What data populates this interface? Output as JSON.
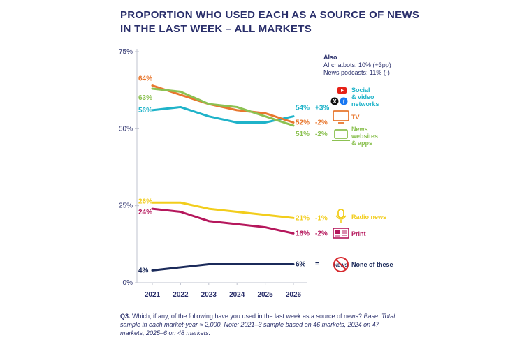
{
  "title": "PROPORTION WHO USED EACH AS A SOURCE OF NEWS IN THE LAST WEEK – ALL MARKETS",
  "also": {
    "heading": "Also",
    "line1": "AI chatbots: 10% (+3pp)",
    "line2": "News podcasts: 11% (-)"
  },
  "footnote": {
    "q": "Q3.",
    "text": " Which, if any, of the following have you used in the last week as a source of news?",
    "italic": " Base: Total sample in each market-year ≈ 2,000. Note: 2021–3 sample based on 46 markets, 2024 on 47 markets, 2025–6 on 48 markets."
  },
  "chart_data": {
    "type": "line",
    "x": [
      "2021",
      "2022",
      "2023",
      "2024",
      "2025",
      "2026"
    ],
    "yticks": [
      "75%",
      "50%",
      "25%",
      "0%"
    ],
    "ylim": [
      0,
      75
    ],
    "series": [
      {
        "name": "Social & video networks",
        "color": "#1fb3c9",
        "values": [
          56,
          57,
          54,
          52,
          52,
          54
        ],
        "start_label": "56%",
        "end_label": "54%",
        "change": "+3%",
        "icon": "social-icon"
      },
      {
        "name": "TV",
        "color": "#e8772e",
        "values": [
          64,
          61,
          58,
          56,
          55,
          52
        ],
        "start_label": "64%",
        "end_label": "52%",
        "change": "-2%",
        "icon": "tv-icon"
      },
      {
        "name": "News websites & apps",
        "color": "#8cc152",
        "values": [
          63,
          62,
          58,
          57,
          54,
          51
        ],
        "start_label": "63%",
        "end_label": "51%",
        "change": "-2%",
        "icon": "laptop-icon"
      },
      {
        "name": "Radio news",
        "color": "#f2cd1c",
        "values": [
          26,
          26,
          24,
          23,
          22,
          21
        ],
        "start_label": "26%",
        "end_label": "21%",
        "change": "-1%",
        "icon": "microphone-icon"
      },
      {
        "name": "Print",
        "color": "#b5175c",
        "values": [
          24,
          23,
          20,
          19,
          18,
          16
        ],
        "start_label": "24%",
        "end_label": "16%",
        "change": "-2%",
        "icon": "newspaper-icon"
      },
      {
        "name": "None of these",
        "color": "#1b2a5a",
        "values": [
          4,
          5,
          6,
          6,
          6,
          6
        ],
        "start_label": "4%",
        "end_label": "6%",
        "change": "=",
        "icon": "no-news-icon"
      }
    ]
  }
}
